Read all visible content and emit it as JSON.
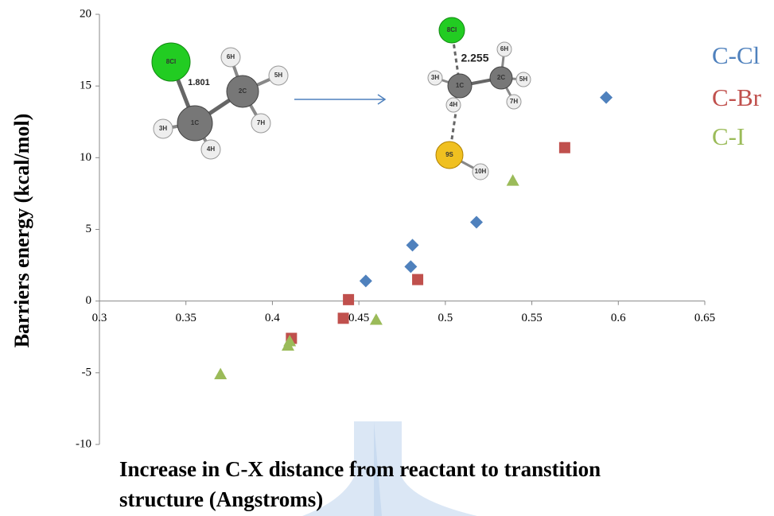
{
  "chart_data": {
    "type": "scatter",
    "ylabel": "Barriers energy (kcal/mol)",
    "xlabel": [
      "Increase in C-X distance from reactant to transtition",
      "structure (Angstroms)"
    ],
    "xlim": [
      0.3,
      0.65
    ],
    "xticks": [
      0.3,
      0.35,
      0.4,
      0.45,
      0.5,
      0.55,
      0.6,
      0.65
    ],
    "ylim": [
      -10,
      20
    ],
    "yticks": [
      -10,
      -5,
      0,
      5,
      10,
      15,
      20
    ],
    "series": [
      {
        "name": "C-Cl",
        "color": "#4f81bd",
        "marker": "diamond",
        "x": [
          0.454,
          0.48,
          0.481,
          0.518,
          0.593
        ],
        "values": [
          1.4,
          2.4,
          3.9,
          5.5,
          14.2
        ]
      },
      {
        "name": "C-Br",
        "color": "#c0504d",
        "marker": "square",
        "x": [
          0.411,
          0.441,
          0.444,
          0.484,
          0.569
        ],
        "values": [
          -2.6,
          -1.2,
          0.1,
          1.5,
          10.7
        ]
      },
      {
        "name": "C-I",
        "color": "#9bbb59",
        "marker": "triangle",
        "x": [
          0.37,
          0.409,
          0.41,
          0.46,
          0.539
        ],
        "values": [
          -5.1,
          -3.1,
          -2.8,
          -1.3,
          8.4
        ]
      }
    ],
    "annotations": {
      "reactant": {
        "atoms": [
          "8Cl",
          "6H",
          "2C",
          "5H",
          "1C",
          "3H",
          "4H",
          "7H"
        ],
        "bond": "1.801"
      },
      "transition": {
        "atoms": [
          "8Cl",
          "6H",
          "2C",
          "5H",
          "3H",
          "1C",
          "4H",
          "7H",
          "9S",
          "10H"
        ],
        "bond": "2.255"
      }
    }
  }
}
